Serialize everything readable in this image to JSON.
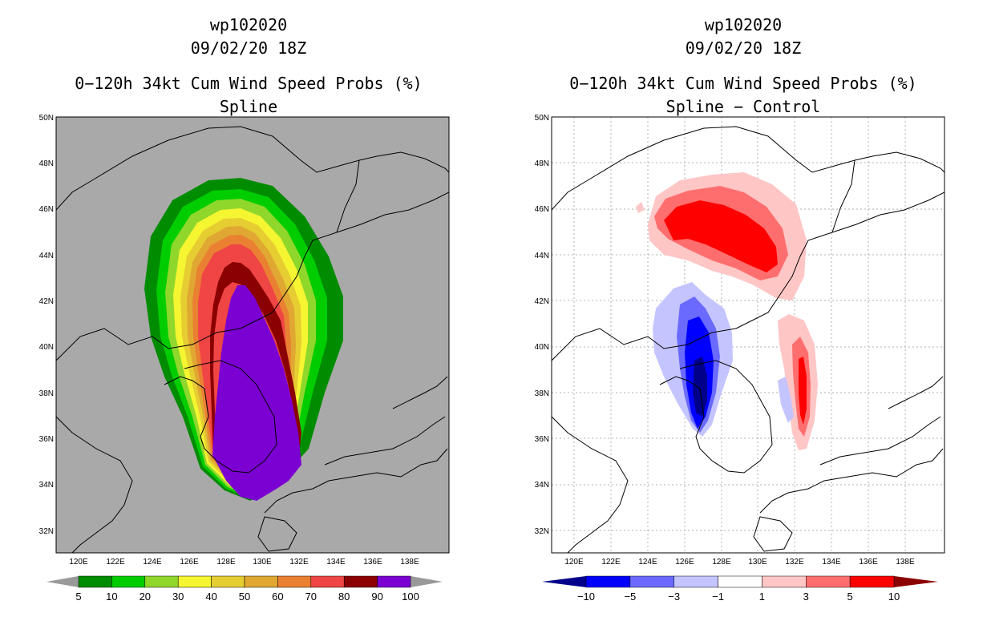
{
  "left": {
    "title_lines": [
      "wp102020",
      "09/02/20 18Z",
      "0−120h 34kt Cum Wind Speed Probs (%)",
      "Spline"
    ],
    "colorbar": {
      "labels": [
        "5",
        "10",
        "20",
        "30",
        "40",
        "50",
        "60",
        "70",
        "80",
        "90",
        "100"
      ],
      "colors": [
        "#008c00",
        "#00cd00",
        "#8fd72b",
        "#f5f531",
        "#e6cd32",
        "#e0a832",
        "#ea8032",
        "#f04545",
        "#8b0000",
        "#7b00d2"
      ],
      "extend_color": "#999999"
    },
    "background": "#a9a9a9"
  },
  "right": {
    "title_lines": [
      "wp102020",
      "09/02/20 18Z",
      "0−120h 34kt Cum Wind Speed Probs (%)",
      "Spline − Control"
    ],
    "colorbar": {
      "labels": [
        "−10",
        "−5",
        "−3",
        "−1",
        "1",
        "3",
        "5",
        "10"
      ],
      "colors": [
        "#0000ff",
        "#6a6aff",
        "#c4c4ff",
        "#ffffff",
        "#ffc6c6",
        "#ff6e6e",
        "#ff0000"
      ],
      "low_extend": "#00008b",
      "high_extend": "#8b0000"
    },
    "background": "#ffffff"
  },
  "axes": {
    "lat_labels": [
      "50N",
      "48N",
      "46N",
      "44N",
      "42N",
      "40N",
      "38N",
      "36N",
      "34N",
      "32N"
    ],
    "lon_labels": [
      "120E",
      "122E",
      "124E",
      "126E",
      "128E",
      "130E",
      "132E",
      "134E",
      "136E",
      "138E"
    ]
  }
}
